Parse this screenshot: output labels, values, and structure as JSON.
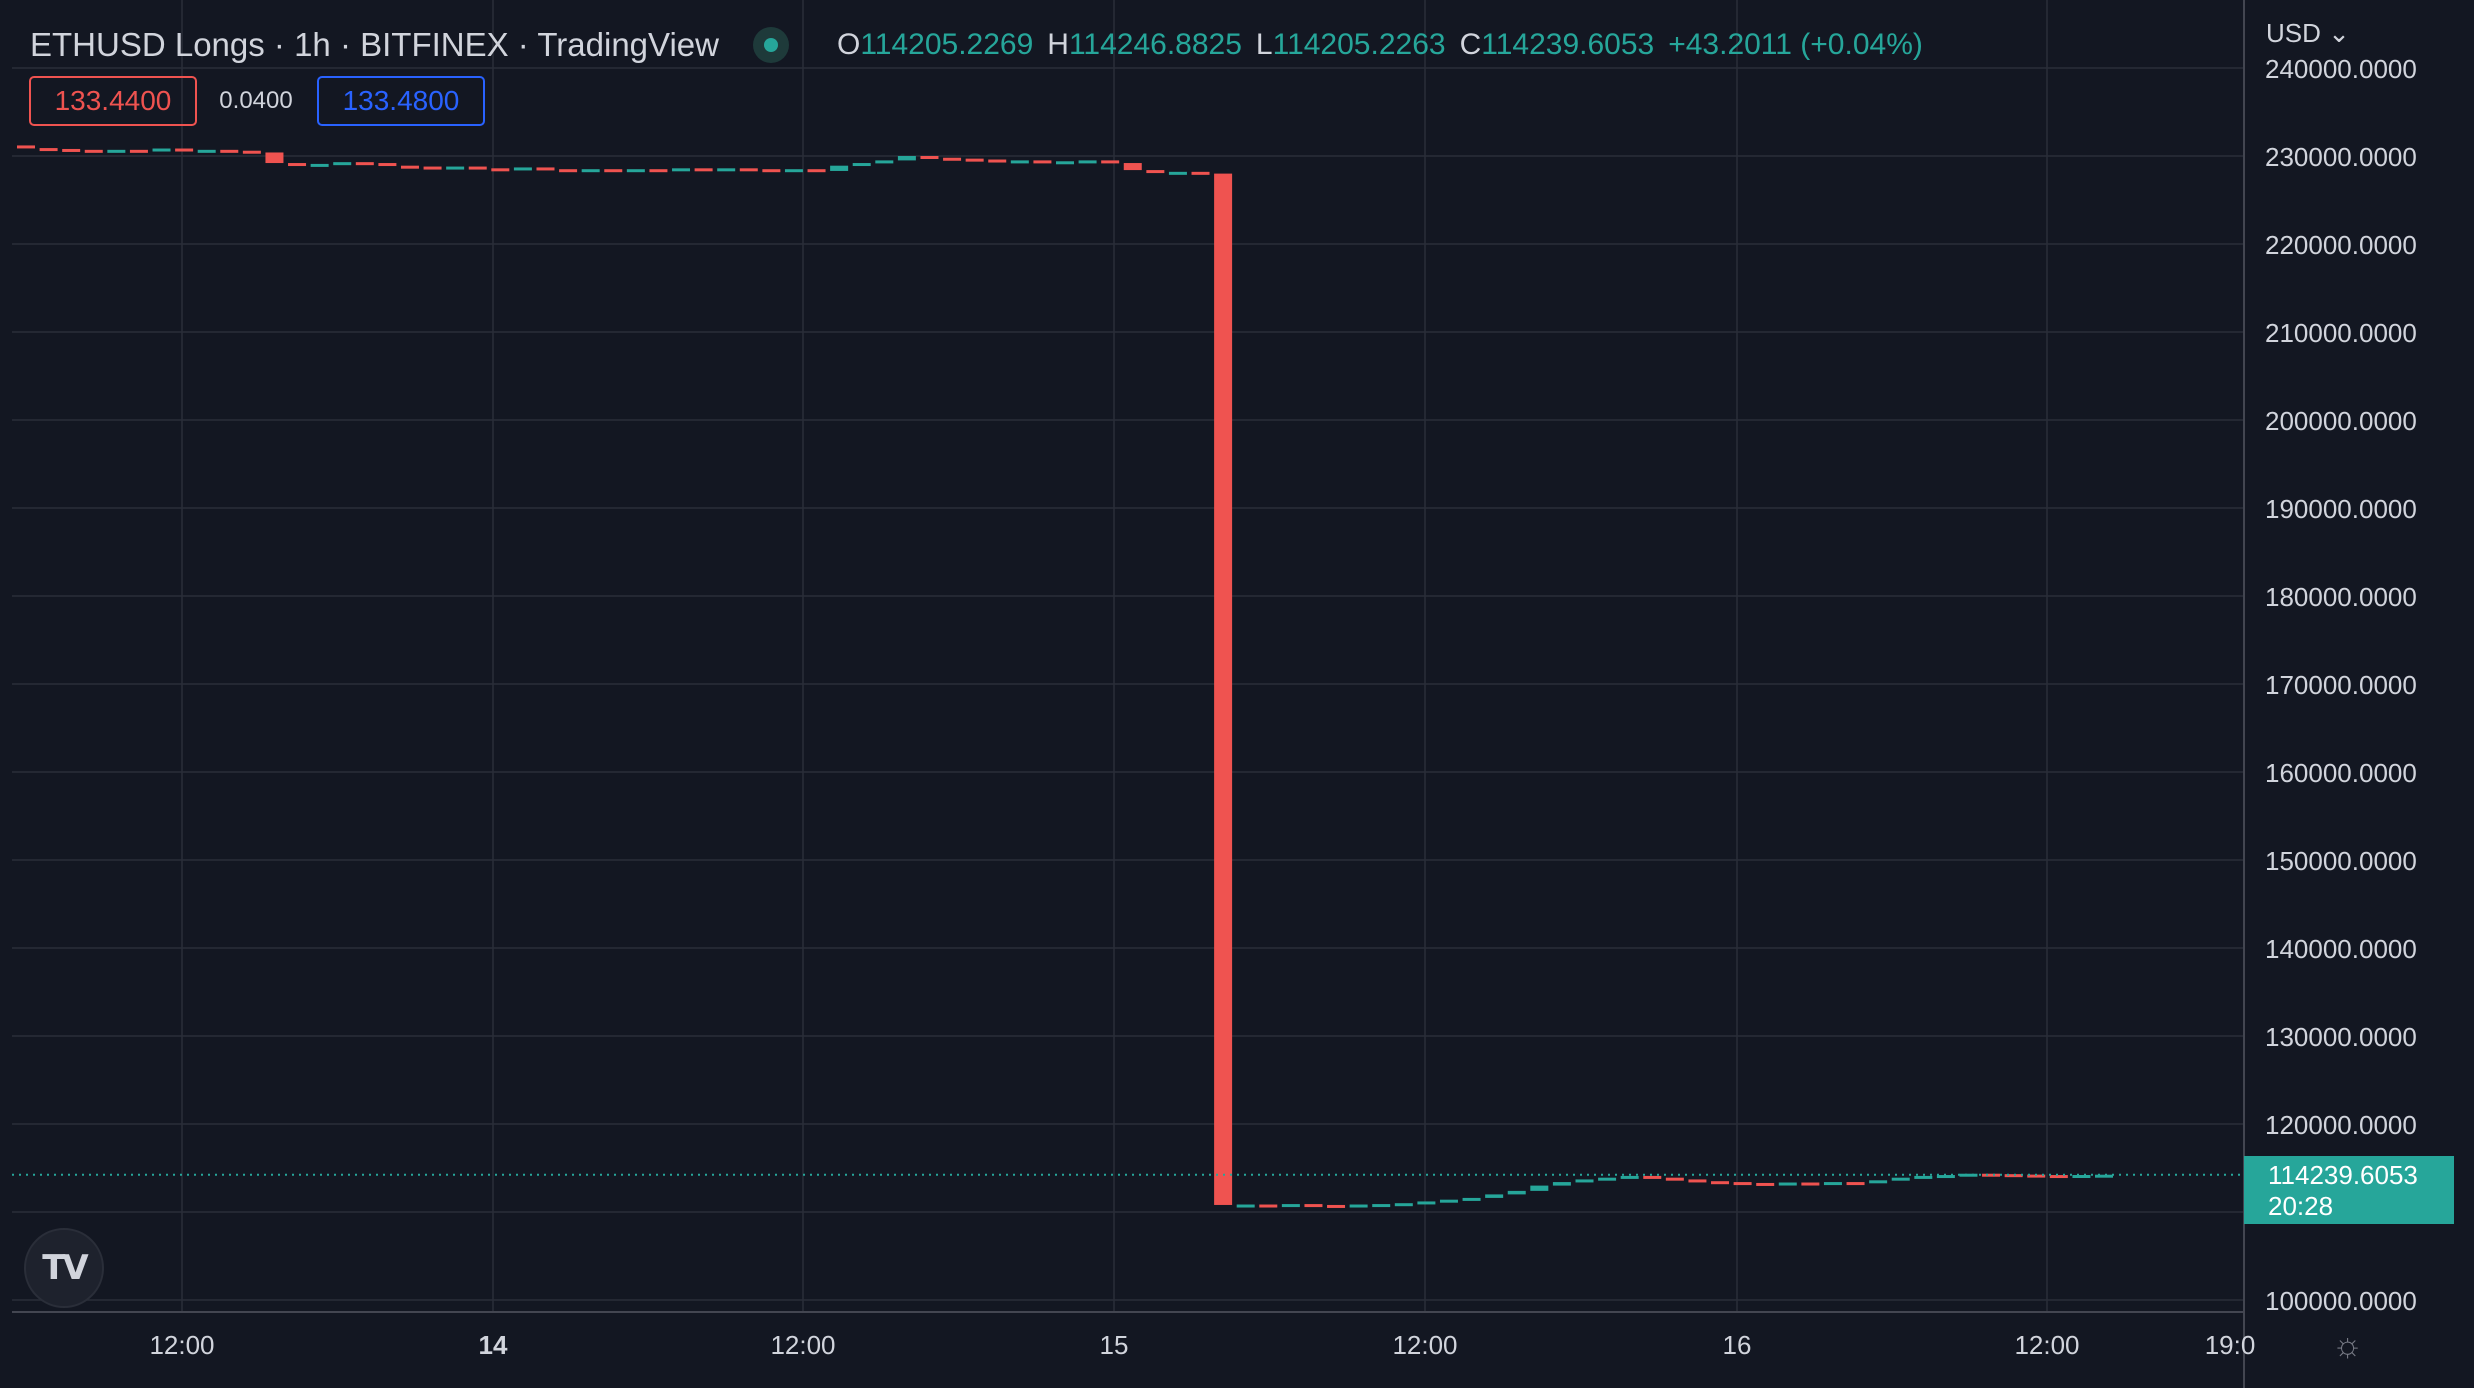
{
  "header": {
    "title": "ETHUSD Longs · 1h · BITFINEX · TradingView",
    "ohlc": {
      "o_label": "O",
      "o": "114205.2269",
      "h_label": "H",
      "h": "114246.8825",
      "l_label": "L",
      "l": "114205.2263",
      "c_label": "C",
      "c": "114239.6053",
      "change": "+43.2011 (+0.04%)"
    }
  },
  "trade": {
    "sell": "133.4400",
    "spread": "0.0400",
    "buy": "133.4800"
  },
  "currency": "USD",
  "last_price": {
    "price": "114239.6053",
    "countdown": "20:28"
  },
  "colors": {
    "background": "#131722",
    "grid": "#2a2e39",
    "up": "#26a69a",
    "down": "#ef5350",
    "text": "#d1d4dc"
  },
  "chart_data": {
    "type": "candlestick",
    "ylim": [
      100000,
      240000
    ],
    "y_ticks": [
      "240000.0000",
      "230000.0000",
      "220000.0000",
      "210000.0000",
      "200000.0000",
      "190000.0000",
      "180000.0000",
      "170000.0000",
      "160000.0000",
      "150000.0000",
      "140000.0000",
      "130000.0000",
      "120000.0000",
      "110000.0000",
      "100000.0000"
    ],
    "x_tick_labels": [
      "12:00",
      "14",
      "12:00",
      "15",
      "12:00",
      "16",
      "12:00",
      "19:0"
    ],
    "candles": [
      [
        231200,
        230900
      ],
      [
        230900,
        230800
      ],
      [
        230800,
        230700
      ],
      [
        230700,
        230600
      ],
      [
        230600,
        230700
      ],
      [
        230700,
        230600
      ],
      [
        230600,
        230850
      ],
      [
        230850,
        230600
      ],
      [
        230600,
        230700
      ],
      [
        230700,
        230600
      ],
      [
        230600,
        230400
      ],
      [
        230400,
        229200
      ],
      [
        229200,
        229000
      ],
      [
        229000,
        229100
      ],
      [
        229100,
        229300
      ],
      [
        229300,
        229200
      ],
      [
        229200,
        228900
      ],
      [
        228900,
        228800
      ],
      [
        228800,
        228700
      ],
      [
        228700,
        228800
      ],
      [
        228800,
        228600
      ],
      [
        228600,
        228500
      ],
      [
        228500,
        228700
      ],
      [
        228700,
        228500
      ],
      [
        228500,
        228400
      ],
      [
        228400,
        228500
      ],
      [
        228500,
        228300
      ],
      [
        228300,
        228500
      ],
      [
        228500,
        228400
      ],
      [
        228400,
        228600
      ],
      [
        228600,
        228500
      ],
      [
        228500,
        228600
      ],
      [
        228600,
        228500
      ],
      [
        228500,
        228400
      ],
      [
        228400,
        228500
      ],
      [
        228500,
        228300
      ],
      [
        228300,
        228900
      ],
      [
        228900,
        229200
      ],
      [
        229200,
        229500
      ],
      [
        229500,
        230000
      ],
      [
        230000,
        229800
      ],
      [
        229800,
        229700
      ],
      [
        229700,
        229600
      ],
      [
        229600,
        229400
      ],
      [
        229400,
        229500
      ],
      [
        229500,
        229300
      ],
      [
        229300,
        229400
      ],
      [
        229400,
        229500
      ],
      [
        229500,
        229200
      ],
      [
        229200,
        228400
      ],
      [
        228400,
        228100
      ],
      [
        228100,
        228200
      ],
      [
        228200,
        228000
      ],
      [
        228000,
        110800
      ],
      [
        110800,
        110850
      ],
      [
        110850,
        110800
      ],
      [
        110800,
        110900
      ],
      [
        110900,
        110800
      ],
      [
        110800,
        110750
      ],
      [
        110750,
        110850
      ],
      [
        110850,
        110900
      ],
      [
        110900,
        111000
      ],
      [
        111000,
        111200
      ],
      [
        111200,
        111400
      ],
      [
        111400,
        111600
      ],
      [
        111600,
        112000
      ],
      [
        112000,
        112400
      ],
      [
        112400,
        113000
      ],
      [
        113000,
        113400
      ],
      [
        113400,
        113700
      ],
      [
        113700,
        113900
      ],
      [
        113900,
        114100
      ],
      [
        114100,
        113900
      ],
      [
        113900,
        113700
      ],
      [
        113700,
        113500
      ],
      [
        113500,
        113400
      ],
      [
        113400,
        113300
      ],
      [
        113300,
        113200
      ],
      [
        113200,
        113350
      ],
      [
        113350,
        113300
      ],
      [
        113300,
        113400
      ],
      [
        113400,
        113300
      ],
      [
        113300,
        113600
      ],
      [
        113600,
        113900
      ],
      [
        113900,
        114100
      ],
      [
        114100,
        114200
      ],
      [
        114200,
        114350
      ],
      [
        114350,
        114300
      ],
      [
        114300,
        114250
      ],
      [
        114250,
        114200
      ],
      [
        114200,
        114150
      ],
      [
        114150,
        114205
      ],
      [
        114205,
        114239
      ]
    ]
  }
}
